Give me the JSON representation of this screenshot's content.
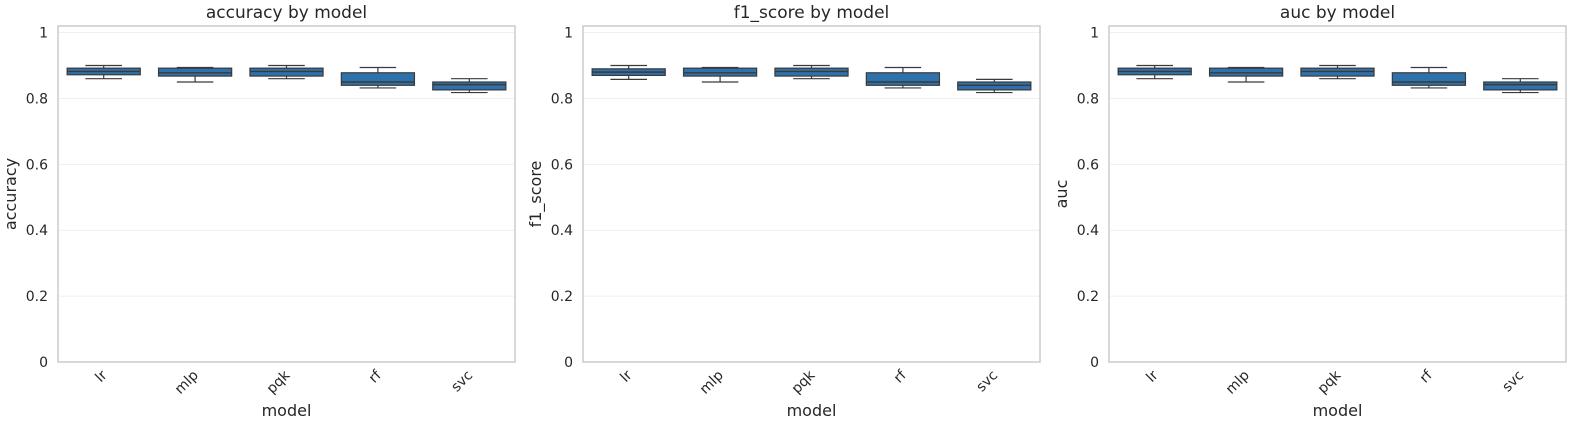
{
  "chart_data": [
    {
      "type": "box",
      "title": "accuracy by model",
      "xlabel": "model",
      "ylabel": "accuracy",
      "ylim": [
        0,
        1.02
      ],
      "yticks": [
        0.0,
        0.2,
        0.4,
        0.6,
        0.8,
        1.0
      ],
      "grid": true,
      "categories": [
        "lr",
        "mlp",
        "pqk",
        "rf",
        "svc"
      ],
      "boxes": [
        {
          "whisker_low": 0.86,
          "q1": 0.872,
          "median": 0.882,
          "q3": 0.892,
          "whisker_high": 0.9
        },
        {
          "whisker_low": 0.85,
          "q1": 0.868,
          "median": 0.878,
          "q3": 0.892,
          "whisker_high": 0.894
        },
        {
          "whisker_low": 0.86,
          "q1": 0.868,
          "median": 0.882,
          "q3": 0.892,
          "whisker_high": 0.9
        },
        {
          "whisker_low": 0.832,
          "q1": 0.84,
          "median": 0.85,
          "q3": 0.878,
          "whisker_high": 0.894
        },
        {
          "whisker_low": 0.818,
          "q1": 0.826,
          "median": 0.842,
          "q3": 0.85,
          "whisker_high": 0.86
        }
      ]
    },
    {
      "type": "box",
      "title": "f1_score by model",
      "xlabel": "model",
      "ylabel": "f1_score",
      "ylim": [
        0,
        1.02
      ],
      "yticks": [
        0.0,
        0.2,
        0.4,
        0.6,
        0.8,
        1.0
      ],
      "grid": true,
      "categories": [
        "lr",
        "mlp",
        "pqk",
        "rf",
        "svc"
      ],
      "boxes": [
        {
          "whisker_low": 0.858,
          "q1": 0.87,
          "median": 0.88,
          "q3": 0.89,
          "whisker_high": 0.9
        },
        {
          "whisker_low": 0.85,
          "q1": 0.868,
          "median": 0.878,
          "q3": 0.892,
          "whisker_high": 0.894
        },
        {
          "whisker_low": 0.86,
          "q1": 0.868,
          "median": 0.882,
          "q3": 0.892,
          "whisker_high": 0.9
        },
        {
          "whisker_low": 0.832,
          "q1": 0.84,
          "median": 0.85,
          "q3": 0.878,
          "whisker_high": 0.894
        },
        {
          "whisker_low": 0.818,
          "q1": 0.826,
          "median": 0.84,
          "q3": 0.85,
          "whisker_high": 0.858
        }
      ]
    },
    {
      "type": "box",
      "title": "auc by model",
      "xlabel": "model",
      "ylabel": "auc",
      "ylim": [
        0,
        1.02
      ],
      "yticks": [
        0.0,
        0.2,
        0.4,
        0.6,
        0.8,
        1.0
      ],
      "grid": true,
      "categories": [
        "lr",
        "mlp",
        "pqk",
        "rf",
        "svc"
      ],
      "boxes": [
        {
          "whisker_low": 0.86,
          "q1": 0.872,
          "median": 0.882,
          "q3": 0.892,
          "whisker_high": 0.9
        },
        {
          "whisker_low": 0.85,
          "q1": 0.868,
          "median": 0.878,
          "q3": 0.892,
          "whisker_high": 0.894
        },
        {
          "whisker_low": 0.86,
          "q1": 0.868,
          "median": 0.882,
          "q3": 0.892,
          "whisker_high": 0.9
        },
        {
          "whisker_low": 0.832,
          "q1": 0.84,
          "median": 0.85,
          "q3": 0.878,
          "whisker_high": 0.894
        },
        {
          "whisker_low": 0.818,
          "q1": 0.826,
          "median": 0.842,
          "q3": 0.85,
          "whisker_high": 0.86
        }
      ]
    }
  ],
  "colors": {
    "box_fill": "#2f72ab",
    "line": "#3a3a3a",
    "frame": "#cccccc",
    "grid": "#ebebeb",
    "text": "#262626"
  }
}
